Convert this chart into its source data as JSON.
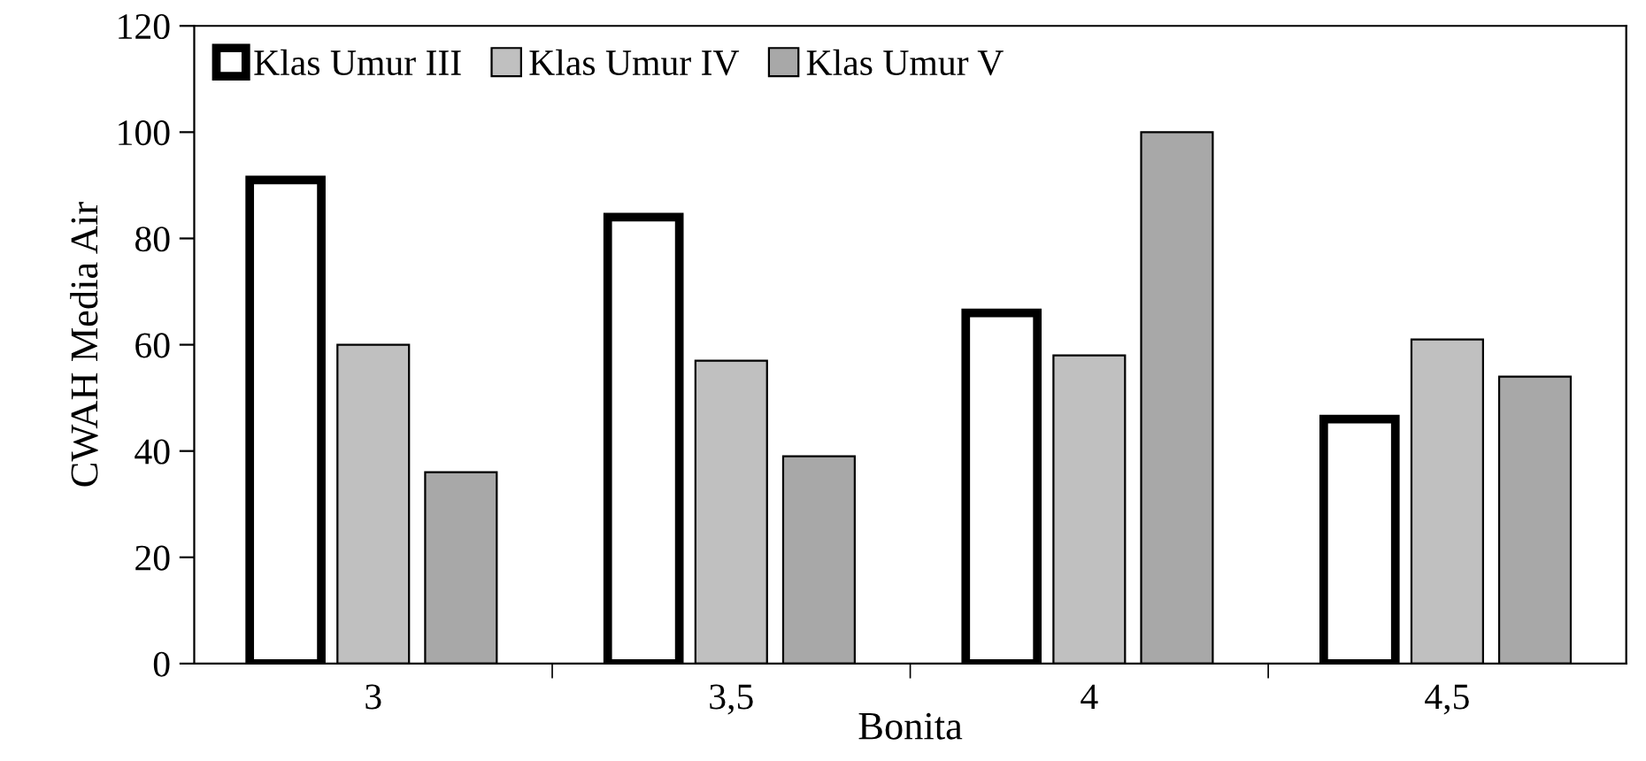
{
  "chart_data": {
    "type": "bar",
    "xlabel": "Bonita",
    "ylabel": "CWAH Media Air",
    "categories": [
      "3",
      "3,5",
      "4",
      "4,5"
    ],
    "series": [
      {
        "name": "Klas Umur III",
        "color": "#ffffff",
        "values": [
          91,
          84,
          66,
          46
        ]
      },
      {
        "name": "Klas Umur IV",
        "color": "#c0c0c0",
        "values": [
          60,
          57,
          58,
          61
        ]
      },
      {
        "name": "Klas Umur V",
        "color": "#a8a8a8",
        "values": [
          36,
          39,
          100,
          54
        ]
      }
    ],
    "ylim": [
      0,
      120
    ],
    "yticks": [
      0,
      20,
      40,
      60,
      80,
      100,
      120
    ],
    "grid": false,
    "legend": "top left"
  }
}
